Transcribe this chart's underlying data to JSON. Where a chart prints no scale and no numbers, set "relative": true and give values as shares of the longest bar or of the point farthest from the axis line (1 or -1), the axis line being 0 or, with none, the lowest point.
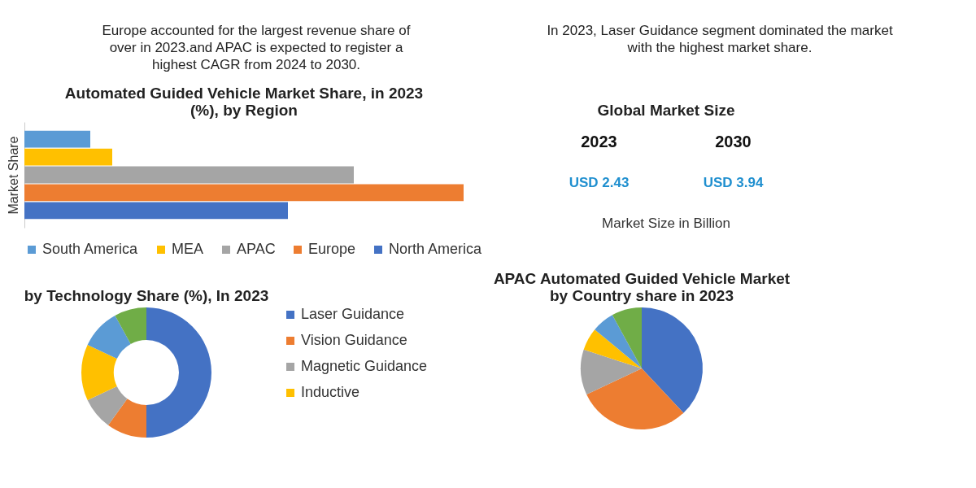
{
  "chart_data": [
    {
      "type": "other",
      "annotations": [
        "Europe accounted for the largest revenue share of over in 2023.and APAC is expected to register a highest CAGR from 2024 to 2030.",
        "In 2023, Laser Guidance segment dominated the market with the highest market share."
      ]
    },
    {
      "type": "bar",
      "orientation": "horizontal",
      "relative": true,
      "title": "Automated Guided Vehicle Market Share, in 2023 (%), by Region",
      "ylabel": "Market Share",
      "categories": [
        null
      ],
      "legend": "bottom",
      "series": [
        {
          "name": "South America",
          "color": "#5b9bd5",
          "values": [
            0.15
          ]
        },
        {
          "name": "MEA",
          "color": "#ffc000",
          "values": [
            0.2
          ]
        },
        {
          "name": "APAC",
          "color": "#a5a5a5",
          "values": [
            0.75
          ]
        },
        {
          "name": "Europe",
          "color": "#ed7d31",
          "values": [
            1
          ]
        },
        {
          "name": "North America",
          "color": "#4472c4",
          "values": [
            0.6
          ]
        }
      ]
    },
    {
      "type": "other",
      "title": "Global Market Size",
      "annotations": [
        "2023",
        "2030",
        "USD 2.43",
        "USD 3.94",
        "Market Size in Billion"
      ]
    },
    {
      "type": "donut",
      "title": "by Technology Share (%), In 2023",
      "legend": "right",
      "categories": [
        "Laser Guidance",
        "Vision Guidance",
        "Magnetic Guidance",
        "Inductive",
        null,
        null
      ],
      "values": [
        50,
        10,
        8,
        14,
        10,
        8
      ],
      "colors": [
        "#4472c4",
        "#ed7d31",
        "#a5a5a5",
        "#ffc000",
        "#5b9bd5",
        "#70ad47"
      ]
    },
    {
      "type": "pie",
      "title": "APAC Automated Guided Vehicle Market by Country share in 2023",
      "legend": false,
      "categories": [
        null,
        null,
        null,
        null,
        null,
        null
      ],
      "values": [
        38,
        30,
        12,
        6,
        6,
        8
      ],
      "colors": [
        "#4472c4",
        "#ed7d31",
        "#a5a5a5",
        "#ffc000",
        "#5b9bd5",
        "#70ad47"
      ]
    }
  ]
}
